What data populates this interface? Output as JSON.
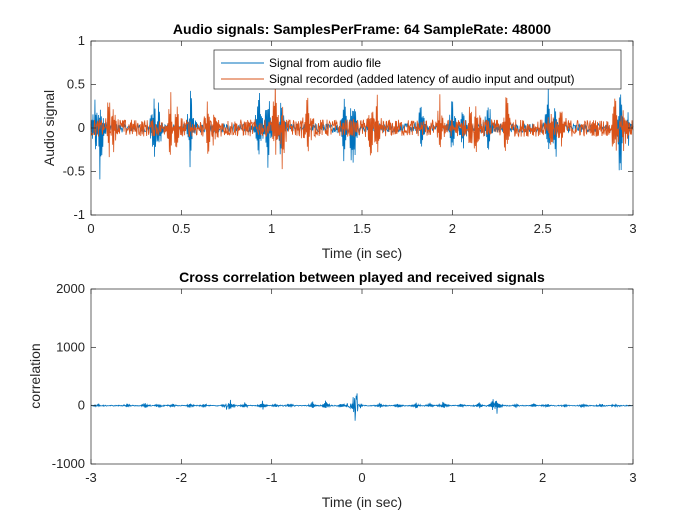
{
  "chart_data": [
    {
      "type": "line",
      "title": "Audio signals: SamplesPerFrame: 64 SampleRate: 48000",
      "xlabel": "Time (in sec)",
      "ylabel": "Audio signal",
      "xlim": [
        0,
        3
      ],
      "ylim": [
        -1,
        1
      ],
      "xticks": [
        0,
        0.5,
        1,
        1.5,
        2,
        2.5,
        3
      ],
      "xtick_labels": [
        "0",
        "0.5",
        "1",
        "1.5",
        "2",
        "2.5",
        "3"
      ],
      "yticks": [
        -1,
        -0.5,
        0,
        0.5,
        1
      ],
      "ytick_labels": [
        "-1",
        "-0.5",
        "0",
        "0.5",
        "1"
      ],
      "grid": false,
      "legend_position": "top-right",
      "series": [
        {
          "name": "Signal from audio file",
          "color": "#0072BD",
          "noise_amplitude": 0.05,
          "peaks": [
            [
              0.03,
              0.7
            ],
            [
              0.05,
              -0.9
            ],
            [
              0.35,
              0.82
            ],
            [
              0.37,
              -0.55
            ],
            [
              0.55,
              0.6
            ],
            [
              0.93,
              0.58
            ],
            [
              0.98,
              0.66
            ],
            [
              1.05,
              -0.45
            ],
            [
              1.4,
              0.55
            ],
            [
              1.45,
              -0.95
            ],
            [
              1.83,
              0.4
            ],
            [
              2.0,
              0.5
            ],
            [
              2.06,
              -0.3
            ],
            [
              2.2,
              0.45
            ],
            [
              2.53,
              0.45
            ],
            [
              2.57,
              -0.5
            ],
            [
              2.93,
              -0.9
            ],
            [
              2.97,
              0.35
            ]
          ]
        },
        {
          "name": "Signal recorded (added latency of audio input and output)",
          "color": "#D95319",
          "noise_amplitude": 0.1,
          "peaks": [
            [
              0.1,
              0.45
            ],
            [
              0.13,
              -0.5
            ],
            [
              0.44,
              0.6
            ],
            [
              0.47,
              -0.5
            ],
            [
              0.65,
              0.5
            ],
            [
              0.68,
              -0.4
            ],
            [
              1.02,
              0.6
            ],
            [
              1.06,
              -0.55
            ],
            [
              1.2,
              0.5
            ],
            [
              1.55,
              0.45
            ],
            [
              1.58,
              -0.55
            ],
            [
              1.93,
              0.35
            ],
            [
              2.1,
              0.45
            ],
            [
              2.13,
              -0.45
            ],
            [
              2.3,
              0.5
            ],
            [
              2.55,
              0.25
            ],
            [
              2.6,
              0.35
            ],
            [
              2.9,
              -0.6
            ],
            [
              2.95,
              0.3
            ]
          ]
        }
      ]
    },
    {
      "type": "line",
      "title": "Cross correlation between played and received signals",
      "xlabel": "Time (in sec)",
      "ylabel": "correlation",
      "xlim": [
        -3,
        3
      ],
      "ylim": [
        -1000,
        2000
      ],
      "xticks": [
        -3,
        -2,
        -1,
        0,
        1,
        2,
        3
      ],
      "xtick_labels": [
        "-3",
        "-2",
        "-1",
        "0",
        "1",
        "2",
        "3"
      ],
      "yticks": [
        -1000,
        0,
        1000,
        2000
      ],
      "ytick_labels": [
        "-1000",
        "0",
        "1000",
        "2000"
      ],
      "grid": false,
      "series": [
        {
          "color": "#0072BD",
          "noise_amplitude": 8,
          "peaks": [
            [
              -2.93,
              60
            ],
            [
              -2.95,
              -40
            ],
            [
              -2.6,
              40
            ],
            [
              -2.4,
              60
            ],
            [
              -2.25,
              40
            ],
            [
              -2.1,
              50
            ],
            [
              -1.9,
              50
            ],
            [
              -1.75,
              50
            ],
            [
              -1.5,
              120
            ],
            [
              -1.47,
              -250
            ],
            [
              -1.3,
              60
            ],
            [
              -1.1,
              100
            ],
            [
              -0.95,
              60
            ],
            [
              -0.8,
              60
            ],
            [
              -0.55,
              80
            ],
            [
              -0.4,
              100
            ],
            [
              -0.22,
              60
            ],
            [
              -0.1,
              650
            ],
            [
              -0.09,
              -1000
            ],
            [
              -0.07,
              450
            ],
            [
              0.2,
              60
            ],
            [
              0.4,
              60
            ],
            [
              0.6,
              60
            ],
            [
              0.75,
              60
            ],
            [
              0.9,
              80
            ],
            [
              1.1,
              50
            ],
            [
              1.3,
              70
            ],
            [
              1.45,
              150
            ],
            [
              1.49,
              -200
            ],
            [
              1.7,
              40
            ],
            [
              1.9,
              40
            ],
            [
              2.05,
              40
            ],
            [
              2.25,
              40
            ],
            [
              2.45,
              40
            ],
            [
              2.65,
              40
            ],
            [
              2.8,
              70
            ],
            [
              2.82,
              -50
            ]
          ]
        }
      ]
    }
  ]
}
